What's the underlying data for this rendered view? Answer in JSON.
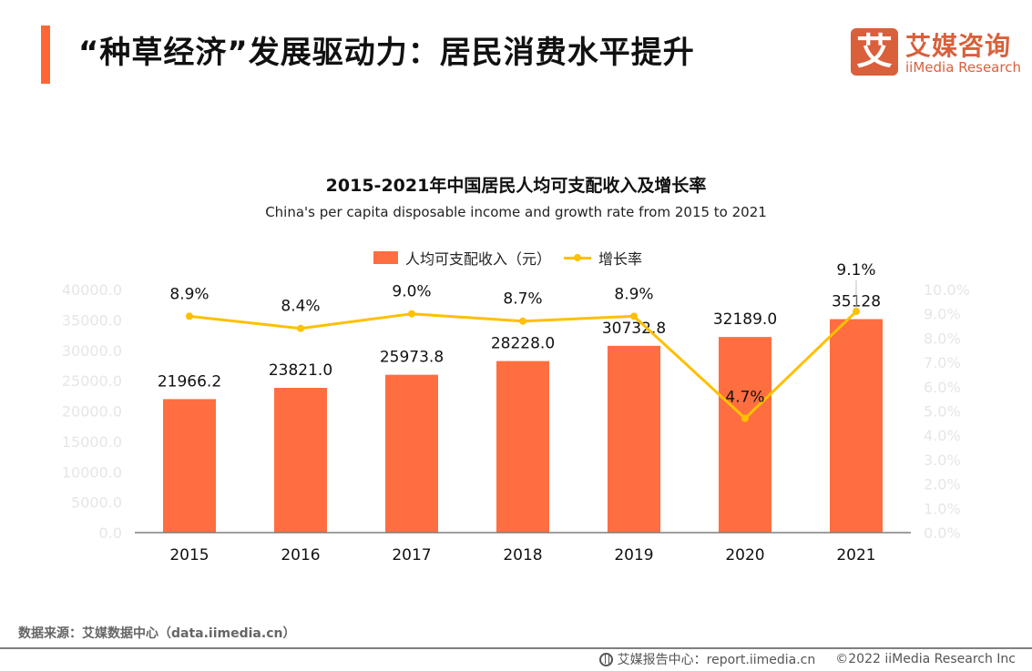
{
  "header": {
    "title": "“种草经济”发展驱动力：居民消费水平提升",
    "logo_mark": "艾",
    "logo_cn": "艾媒咨询",
    "logo_en": "iiMedia Research"
  },
  "colors": {
    "accent": "#ff6633",
    "bar": "#ff6e40",
    "line": "#ffc000",
    "logo": "#d9603b"
  },
  "chart_data": {
    "type": "bar",
    "title": "2015-2021年中国居民人均可支配收入及增长率",
    "subtitle": "China's per capita disposable income and growth rate from 2015 to 2021",
    "categories": [
      "2015",
      "2016",
      "2017",
      "2018",
      "2019",
      "2020",
      "2021"
    ],
    "series": [
      {
        "name": "人均可支配收入（元）",
        "type": "bar",
        "axis": "left",
        "values": [
          21966.2,
          23821.0,
          25973.8,
          28228.0,
          30732.8,
          32189.0,
          35128
        ],
        "labels": [
          "21966.2",
          "23821.0",
          "25973.8",
          "28228.0",
          "30732.8",
          "32189.0",
          "35128"
        ]
      },
      {
        "name": "增长率",
        "type": "line",
        "axis": "right",
        "values": [
          8.9,
          8.4,
          9.0,
          8.7,
          8.9,
          4.7,
          9.1
        ],
        "labels": [
          "8.9%",
          "8.4%",
          "9.0%",
          "8.7%",
          "8.9%",
          "4.7%",
          "9.1%"
        ]
      }
    ],
    "left_axis": {
      "ylim": [
        0,
        40000
      ],
      "ticks": [
        "0.0",
        "5000.0",
        "10000.0",
        "15000.0",
        "20000.0",
        "25000.0",
        "30000.0",
        "35000.0",
        "40000.0"
      ]
    },
    "right_axis": {
      "ylim": [
        0,
        10
      ],
      "ticks": [
        "0.0%",
        "1.0%",
        "2.0%",
        "3.0%",
        "4.0%",
        "5.0%",
        "6.0%",
        "7.0%",
        "8.0%",
        "9.0%",
        "10.0%"
      ]
    },
    "legend": {
      "position": "top-center",
      "items": [
        "人均可支配收入（元）",
        "增长率"
      ]
    },
    "grid": false,
    "xlabel": "",
    "ylabel": ""
  },
  "footer": {
    "source": "数据来源：艾媒数据中心（data.iimedia.cn）",
    "report_center": "艾媒报告中心：report.iimedia.cn",
    "copyright": "©2022  iiMedia Research  Inc"
  }
}
